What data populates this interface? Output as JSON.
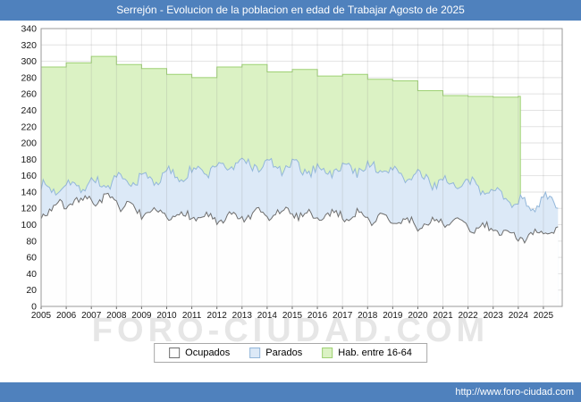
{
  "header": {
    "title": "Serrejón - Evolucion de la poblacion en edad de Trabajar Agosto de 2025"
  },
  "footer": {
    "url": "http://www.foro-ciudad.com"
  },
  "watermark": "FORO-CIUDAD.COM",
  "colors": {
    "bar_blue": "#4f81bd",
    "grid": "#e2e2e2",
    "plot_border": "#9a9a9a",
    "year_overlay_line": "rgba(140,140,140,0.22)",
    "tick": "#666666"
  },
  "chart_data": {
    "type": "area",
    "title": "Serrejón - Evolucion de la poblacion en edad de Trabajar Agosto de 2025",
    "xlabel": "",
    "ylabel": "",
    "xlim": [
      2005,
      2025.75
    ],
    "ylim": [
      0,
      340
    ],
    "y_step": 20,
    "grid": true,
    "legend_position": "bottom",
    "x_years": [
      2005,
      2006,
      2007,
      2008,
      2009,
      2010,
      2011,
      2012,
      2013,
      2014,
      2015,
      2016,
      2017,
      2018,
      2019,
      2020,
      2021,
      2022,
      2023,
      2024,
      2025
    ],
    "series": [
      {
        "name": "Ocupados",
        "fill": "#fefefe",
        "stroke": "#6e6e6e",
        "jitter": 5,
        "values": [
          115,
          125,
          132,
          128,
          115,
          110,
          112,
          105,
          110,
          112,
          115,
          110,
          113,
          109,
          105,
          100,
          104,
          99,
          94,
          85,
          90
        ]
      },
      {
        "name": "Parados",
        "fill": "#dce9f7",
        "stroke": "#93b7da",
        "jitter": 6,
        "values": [
          143,
          148,
          150,
          152,
          155,
          160,
          163,
          170,
          175,
          172,
          170,
          166,
          168,
          170,
          165,
          157,
          152,
          148,
          143,
          125,
          128
        ]
      },
      {
        "name": "Hab. entre 16-64",
        "fill": "#dbf2c4",
        "stroke": "#9ed173",
        "step": true,
        "end_x": 2024.083,
        "values": [
          293,
          298,
          306,
          296,
          291,
          284,
          280,
          293,
          296,
          287,
          290,
          282,
          284,
          278,
          276,
          264,
          258,
          257,
          256,
          257,
          null
        ]
      }
    ]
  }
}
